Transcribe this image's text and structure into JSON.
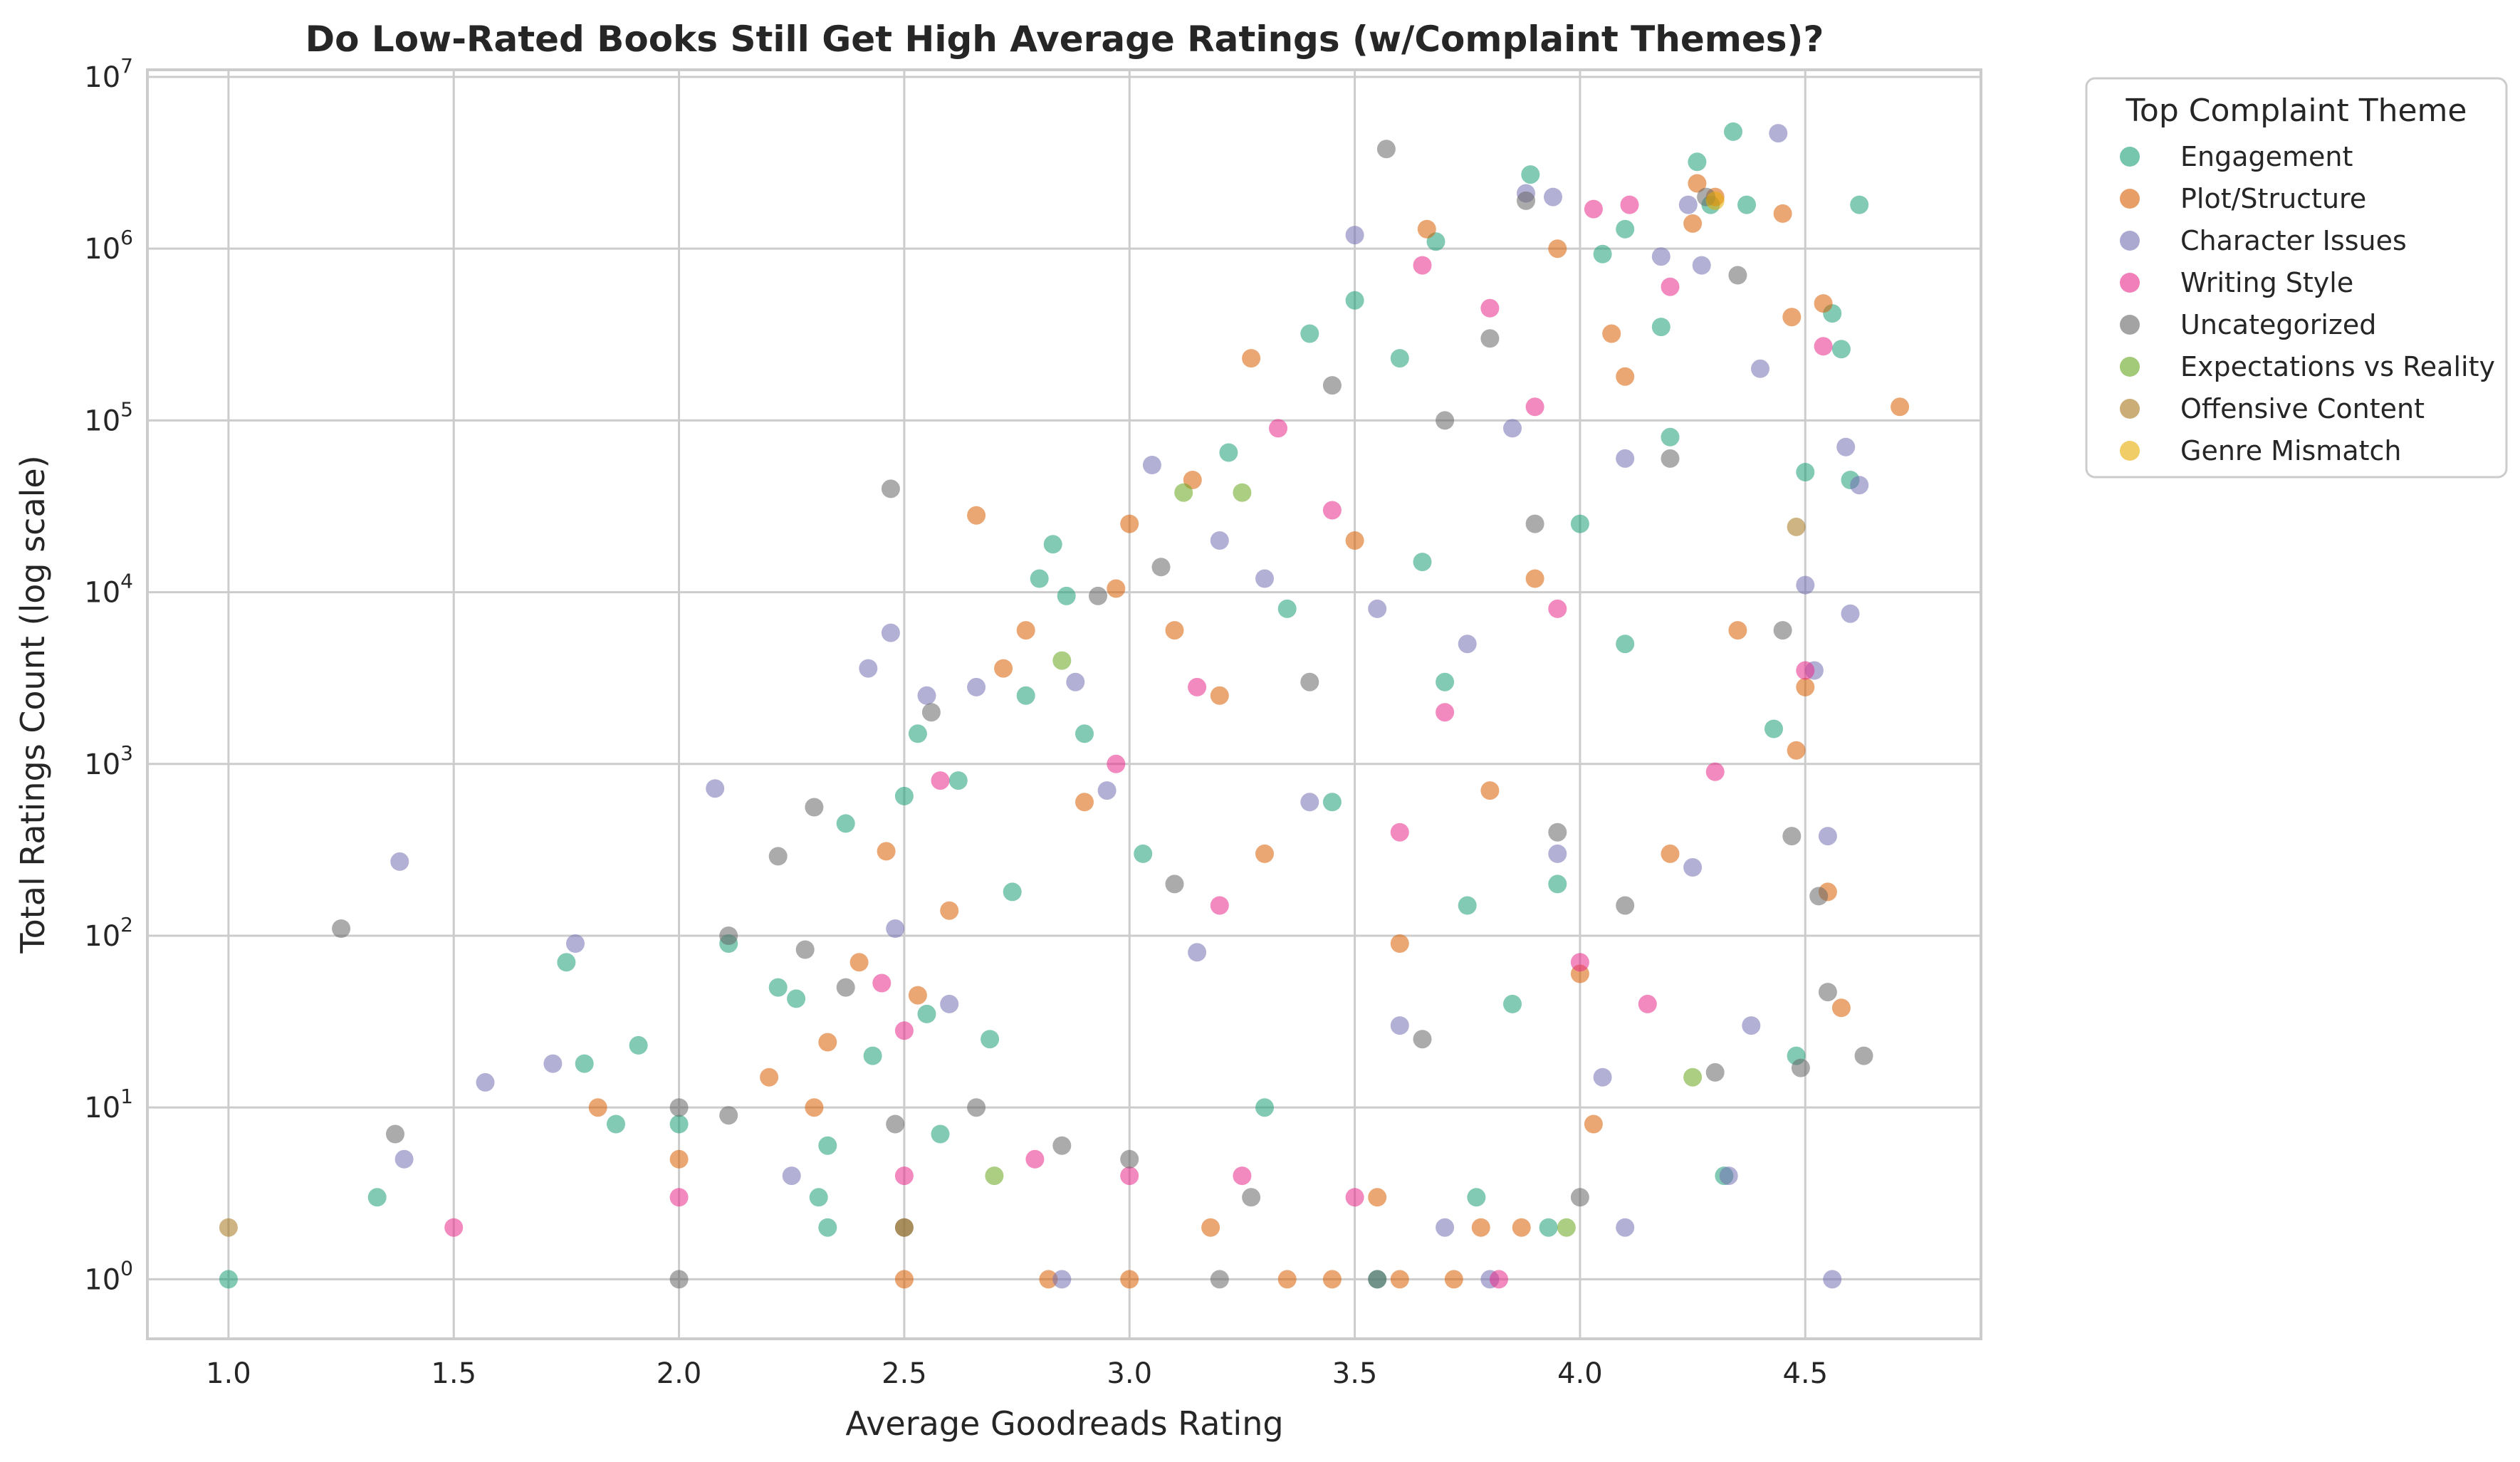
{
  "chart_data": {
    "type": "scatter",
    "title": "Do Low-Rated Books Still Get High Average Ratings (w/Complaint Themes)?",
    "xlabel": "Average Goodreads Rating",
    "ylabel": "Total Ratings Count (log scale)",
    "xlim": [
      0.82,
      4.89
    ],
    "ylim": [
      0.45,
      11000000
    ],
    "y_scale": "log",
    "x_ticks": [
      {
        "value": 1.0,
        "label": "1.0"
      },
      {
        "value": 1.5,
        "label": "1.5"
      },
      {
        "value": 2.0,
        "label": "2.0"
      },
      {
        "value": 2.5,
        "label": "2.5"
      },
      {
        "value": 3.0,
        "label": "3.0"
      },
      {
        "value": 3.5,
        "label": "3.5"
      },
      {
        "value": 4.0,
        "label": "4.0"
      },
      {
        "value": 4.5,
        "label": "4.5"
      }
    ],
    "y_ticks": [
      {
        "value": 1,
        "base": "10",
        "exp": "0"
      },
      {
        "value": 10,
        "base": "10",
        "exp": "1"
      },
      {
        "value": 100,
        "base": "10",
        "exp": "2"
      },
      {
        "value": 1000,
        "base": "10",
        "exp": "3"
      },
      {
        "value": 10000,
        "base": "10",
        "exp": "4"
      },
      {
        "value": 100000,
        "base": "10",
        "exp": "5"
      },
      {
        "value": 1000000,
        "base": "10",
        "exp": "6"
      },
      {
        "value": 10000000,
        "base": "10",
        "exp": "7"
      }
    ],
    "grid": true,
    "legend_title": "Top Complaint Theme",
    "legend_position": "outside-right-top",
    "series": [
      {
        "name": "Engagement",
        "color": "#1b9e77",
        "points": [
          [
            1.0,
            1
          ],
          [
            1.33,
            3
          ],
          [
            1.75,
            70
          ],
          [
            1.79,
            18
          ],
          [
            1.86,
            8
          ],
          [
            1.91,
            23
          ],
          [
            2.0,
            8
          ],
          [
            2.11,
            90
          ],
          [
            2.22,
            50
          ],
          [
            2.26,
            43
          ],
          [
            2.31,
            3
          ],
          [
            2.33,
            2
          ],
          [
            2.33,
            6
          ],
          [
            2.37,
            450
          ],
          [
            2.43,
            20
          ],
          [
            2.5,
            650
          ],
          [
            2.53,
            1500
          ],
          [
            2.55,
            35
          ],
          [
            2.58,
            7
          ],
          [
            2.62,
            800
          ],
          [
            2.69,
            25
          ],
          [
            2.74,
            180
          ],
          [
            2.77,
            2500
          ],
          [
            2.8,
            12000
          ],
          [
            2.83,
            19000
          ],
          [
            2.86,
            9500
          ],
          [
            2.9,
            1500
          ],
          [
            3.03,
            300
          ],
          [
            3.22,
            65000
          ],
          [
            3.3,
            10
          ],
          [
            3.4,
            320000
          ],
          [
            3.5,
            500000
          ],
          [
            3.55,
            1
          ],
          [
            3.6,
            230000
          ],
          [
            3.68,
            1100000
          ],
          [
            3.77,
            3
          ],
          [
            3.89,
            2700000
          ],
          [
            3.93,
            2
          ],
          [
            4.05,
            930000
          ],
          [
            4.1,
            1300000
          ],
          [
            4.18,
            350000
          ],
          [
            4.26,
            3200000
          ],
          [
            4.29,
            1800000
          ],
          [
            4.32,
            4
          ],
          [
            4.34,
            4800000
          ],
          [
            4.37,
            1800000
          ],
          [
            4.43,
            1600
          ],
          [
            4.48,
            20
          ],
          [
            4.5,
            50000
          ],
          [
            4.56,
            420000
          ],
          [
            4.58,
            260000
          ],
          [
            4.6,
            45000
          ],
          [
            4.62,
            1800000
          ],
          [
            4.2,
            80000
          ],
          [
            4.1,
            5000
          ],
          [
            3.95,
            200
          ],
          [
            3.85,
            40
          ],
          [
            3.7,
            3000
          ],
          [
            3.65,
            15000
          ],
          [
            3.75,
            150
          ],
          [
            4.0,
            25000
          ],
          [
            3.45,
            600
          ],
          [
            3.35,
            8000
          ]
        ]
      },
      {
        "name": "Plot/Structure",
        "color": "#d95f02",
        "points": [
          [
            1.82,
            10
          ],
          [
            2.0,
            5
          ],
          [
            2.2,
            15
          ],
          [
            2.3,
            10
          ],
          [
            2.33,
            24
          ],
          [
            2.4,
            70
          ],
          [
            2.46,
            310
          ],
          [
            2.5,
            1
          ],
          [
            2.53,
            45
          ],
          [
            2.6,
            140
          ],
          [
            2.66,
            28000
          ],
          [
            2.72,
            3600
          ],
          [
            2.77,
            6000
          ],
          [
            2.82,
            1
          ],
          [
            2.9,
            600
          ],
          [
            2.97,
            10500
          ],
          [
            3.0,
            1
          ],
          [
            3.0,
            25000
          ],
          [
            3.1,
            6000
          ],
          [
            3.14,
            45000
          ],
          [
            3.18,
            2
          ],
          [
            3.27,
            230000
          ],
          [
            3.35,
            1
          ],
          [
            3.45,
            1
          ],
          [
            3.55,
            3
          ],
          [
            3.6,
            1
          ],
          [
            3.66,
            1300000
          ],
          [
            3.72,
            1
          ],
          [
            3.78,
            2
          ],
          [
            3.87,
            2
          ],
          [
            3.95,
            1000000
          ],
          [
            4.03,
            8
          ],
          [
            4.07,
            320000
          ],
          [
            4.25,
            1400000
          ],
          [
            4.26,
            2400000
          ],
          [
            4.3,
            2000000
          ],
          [
            4.35,
            6000
          ],
          [
            4.45,
            1600000
          ],
          [
            4.48,
            1200
          ],
          [
            4.5,
            2800
          ],
          [
            4.54,
            480000
          ],
          [
            4.55,
            180
          ],
          [
            4.58,
            38
          ],
          [
            4.71,
            120000
          ],
          [
            4.47,
            400000
          ],
          [
            4.2,
            300
          ],
          [
            3.9,
            12000
          ],
          [
            3.8,
            700
          ],
          [
            3.6,
            90
          ],
          [
            3.5,
            20000
          ],
          [
            3.3,
            300
          ],
          [
            3.2,
            2500
          ],
          [
            4.0,
            60
          ],
          [
            4.1,
            180000
          ]
        ]
      },
      {
        "name": "Character Issues",
        "color": "#7570b3",
        "points": [
          [
            1.38,
            270
          ],
          [
            1.39,
            5
          ],
          [
            1.57,
            14
          ],
          [
            1.72,
            18
          ],
          [
            1.77,
            90
          ],
          [
            2.08,
            720
          ],
          [
            2.25,
            4
          ],
          [
            2.42,
            3600
          ],
          [
            2.47,
            5800
          ],
          [
            2.48,
            110
          ],
          [
            2.55,
            2500
          ],
          [
            2.6,
            40
          ],
          [
            2.66,
            2800
          ],
          [
            2.85,
            1
          ],
          [
            2.88,
            3000
          ],
          [
            3.05,
            55000
          ],
          [
            3.2,
            20000
          ],
          [
            3.3,
            12000
          ],
          [
            3.5,
            1200000
          ],
          [
            3.7,
            2
          ],
          [
            3.8,
            1
          ],
          [
            3.88,
            2100000
          ],
          [
            3.94,
            2000000
          ],
          [
            4.1,
            2
          ],
          [
            4.18,
            900000
          ],
          [
            4.24,
            1800000
          ],
          [
            4.27,
            800000
          ],
          [
            4.33,
            4
          ],
          [
            4.38,
            30
          ],
          [
            4.44,
            4700000
          ],
          [
            4.5,
            11000
          ],
          [
            4.52,
            3500
          ],
          [
            4.55,
            380
          ],
          [
            4.56,
            1
          ],
          [
            4.6,
            7500
          ],
          [
            4.62,
            42000
          ],
          [
            4.59,
            70000
          ],
          [
            4.4,
            200000
          ],
          [
            4.1,
            60000
          ],
          [
            3.95,
            300
          ],
          [
            3.75,
            5000
          ],
          [
            3.6,
            30
          ],
          [
            3.4,
            600
          ],
          [
            3.15,
            80
          ],
          [
            2.95,
            700
          ],
          [
            4.05,
            15
          ],
          [
            3.85,
            90000
          ],
          [
            3.55,
            8000
          ],
          [
            4.25,
            250
          ]
        ]
      },
      {
        "name": "Writing Style",
        "color": "#e7298a",
        "points": [
          [
            1.5,
            2
          ],
          [
            2.0,
            3
          ],
          [
            2.45,
            53
          ],
          [
            2.5,
            4
          ],
          [
            2.5,
            28
          ],
          [
            2.58,
            800
          ],
          [
            2.79,
            5
          ],
          [
            2.97,
            1000
          ],
          [
            3.0,
            4
          ],
          [
            3.15,
            2800
          ],
          [
            3.25,
            4
          ],
          [
            3.33,
            90000
          ],
          [
            3.5,
            3
          ],
          [
            3.65,
            800000
          ],
          [
            3.8,
            450000
          ],
          [
            3.82,
            1
          ],
          [
            3.9,
            120000
          ],
          [
            4.03,
            1700000
          ],
          [
            4.11,
            1800000
          ],
          [
            4.2,
            600000
          ],
          [
            4.5,
            3500
          ],
          [
            4.54,
            270000
          ],
          [
            4.3,
            900
          ],
          [
            4.0,
            70
          ],
          [
            3.7,
            2000
          ],
          [
            3.45,
            30000
          ],
          [
            3.2,
            150
          ],
          [
            3.95,
            8000
          ],
          [
            4.15,
            40
          ],
          [
            3.6,
            400
          ]
        ]
      },
      {
        "name": "Uncategorized",
        "color": "#666666",
        "points": [
          [
            1.25,
            110
          ],
          [
            1.37,
            7
          ],
          [
            2.0,
            1
          ],
          [
            2.0,
            10
          ],
          [
            2.11,
            9
          ],
          [
            2.11,
            100
          ],
          [
            2.22,
            290
          ],
          [
            2.28,
            83
          ],
          [
            2.3,
            560
          ],
          [
            2.37,
            50
          ],
          [
            2.47,
            40000
          ],
          [
            2.48,
            8
          ],
          [
            2.5,
            2
          ],
          [
            2.56,
            2000
          ],
          [
            2.66,
            10
          ],
          [
            2.85,
            6
          ],
          [
            2.93,
            9500
          ],
          [
            3.0,
            5
          ],
          [
            3.07,
            14000
          ],
          [
            3.2,
            1
          ],
          [
            3.27,
            3
          ],
          [
            3.45,
            160000
          ],
          [
            3.55,
            1
          ],
          [
            3.57,
            3800000
          ],
          [
            3.7,
            100000
          ],
          [
            3.8,
            300000
          ],
          [
            3.88,
            1900000
          ],
          [
            4.0,
            3
          ],
          [
            4.28,
            2000000
          ],
          [
            4.3,
            16
          ],
          [
            4.35,
            700000
          ],
          [
            4.47,
            380
          ],
          [
            4.49,
            17
          ],
          [
            4.53,
            170
          ],
          [
            4.55,
            47
          ],
          [
            4.63,
            20
          ],
          [
            4.45,
            6000
          ],
          [
            4.2,
            60000
          ],
          [
            3.95,
            400
          ],
          [
            3.65,
            25
          ],
          [
            3.4,
            3000
          ],
          [
            3.1,
            200
          ],
          [
            3.9,
            25000
          ],
          [
            4.1,
            150
          ]
        ]
      },
      {
        "name": "Expectations vs Reality",
        "color": "#66a61e",
        "points": [
          [
            2.7,
            4
          ],
          [
            2.85,
            4000
          ],
          [
            3.12,
            38000
          ],
          [
            3.25,
            38000
          ],
          [
            3.97,
            2
          ],
          [
            4.25,
            15
          ]
        ]
      },
      {
        "name": "Offensive Content",
        "color": "#a6761d",
        "points": [
          [
            1.0,
            2
          ],
          [
            2.5,
            2
          ],
          [
            4.48,
            24000
          ]
        ]
      },
      {
        "name": "Genre Mismatch",
        "color": "#e6ab02",
        "points": [
          [
            4.3,
            1900000
          ]
        ]
      }
    ]
  }
}
